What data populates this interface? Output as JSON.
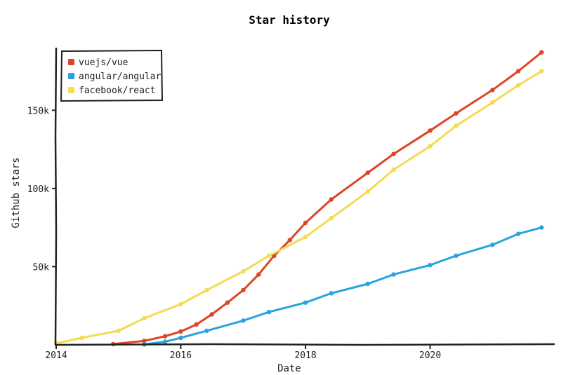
{
  "chart_data": {
    "type": "line",
    "title": "Star history",
    "xlabel": "Date",
    "ylabel": "Github stars",
    "xlim": [
      "2014-01-01",
      "2021-12-31"
    ],
    "ylim": [
      0,
      190000
    ],
    "x_ticks": [
      {
        "date": "2014-01-01",
        "label": "2014"
      },
      {
        "date": "2016-01-01",
        "label": "2016"
      },
      {
        "date": "2018-01-01",
        "label": "2018"
      },
      {
        "date": "2020-01-01",
        "label": "2020"
      }
    ],
    "y_ticks": [
      {
        "value": 50000,
        "label": "50k"
      },
      {
        "value": 100000,
        "label": "100k"
      },
      {
        "value": 150000,
        "label": "150k"
      }
    ],
    "grid": false,
    "legend_position": "top-left",
    "series": [
      {
        "name": "vuejs/vue",
        "color": "#dd4528",
        "points": [
          [
            "2014-12-01",
            500
          ],
          [
            "2015-06-01",
            2500
          ],
          [
            "2015-10-01",
            5500
          ],
          [
            "2016-01-01",
            8500
          ],
          [
            "2016-04-01",
            13000
          ],
          [
            "2016-07-01",
            19500
          ],
          [
            "2016-10-01",
            27000
          ],
          [
            "2017-01-01",
            35000
          ],
          [
            "2017-04-01",
            45000
          ],
          [
            "2017-07-01",
            57000
          ],
          [
            "2017-10-01",
            67000
          ],
          [
            "2018-01-01",
            78000
          ],
          [
            "2018-06-01",
            93000
          ],
          [
            "2019-01-01",
            110000
          ],
          [
            "2019-06-01",
            122000
          ],
          [
            "2020-01-01",
            137000
          ],
          [
            "2020-06-01",
            148000
          ],
          [
            "2021-01-01",
            163000
          ],
          [
            "2021-06-01",
            175000
          ],
          [
            "2021-10-15",
            187000
          ]
        ]
      },
      {
        "name": "angular/angular",
        "color": "#28a3dd",
        "points": [
          [
            "2015-06-01",
            300
          ],
          [
            "2015-10-01",
            2000
          ],
          [
            "2016-01-01",
            4500
          ],
          [
            "2016-06-01",
            9000
          ],
          [
            "2017-01-01",
            15500
          ],
          [
            "2017-06-01",
            21000
          ],
          [
            "2018-01-01",
            27000
          ],
          [
            "2018-06-01",
            33000
          ],
          [
            "2019-01-01",
            39000
          ],
          [
            "2019-06-01",
            45000
          ],
          [
            "2020-01-01",
            51000
          ],
          [
            "2020-06-01",
            57000
          ],
          [
            "2021-01-01",
            64000
          ],
          [
            "2021-06-01",
            71000
          ],
          [
            "2021-10-15",
            75000
          ]
        ]
      },
      {
        "name": "facebook/react",
        "color": "#f3db52",
        "points": [
          [
            "2014-01-01",
            1000
          ],
          [
            "2014-06-01",
            4500
          ],
          [
            "2015-01-01",
            9000
          ],
          [
            "2015-06-01",
            17000
          ],
          [
            "2016-01-01",
            26000
          ],
          [
            "2016-06-01",
            35000
          ],
          [
            "2017-01-01",
            47000
          ],
          [
            "2017-06-01",
            57000
          ],
          [
            "2018-01-01",
            69000
          ],
          [
            "2018-06-01",
            81000
          ],
          [
            "2019-01-01",
            98000
          ],
          [
            "2019-06-01",
            112000
          ],
          [
            "2020-01-01",
            127000
          ],
          [
            "2020-06-01",
            140000
          ],
          [
            "2021-01-01",
            155000
          ],
          [
            "2021-06-01",
            166000
          ],
          [
            "2021-10-15",
            175000
          ]
        ]
      }
    ]
  }
}
